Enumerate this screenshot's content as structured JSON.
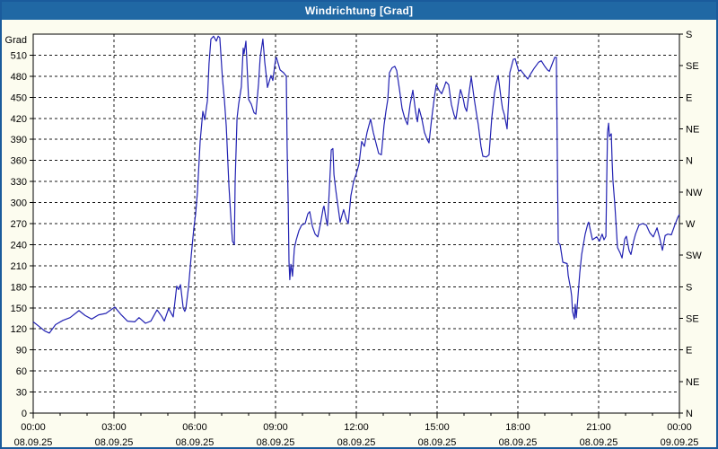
{
  "window": {
    "title": "Windrichtung [Grad]"
  },
  "colors": {
    "frame": "#1a5b9c",
    "titlebar_bg": "#2068a4",
    "titlebar_text": "#ffffff",
    "canvas_bg": "#fcfcef",
    "plot_bg": "#ffffff",
    "gridline": "#1a1a1a",
    "axis": "#000000",
    "line": "#2222b2",
    "label_text": "#000000"
  },
  "chart_data": {
    "type": "line",
    "title": "Windrichtung [Grad]",
    "grid": "dashed",
    "legend": "none",
    "y_axis_left": {
      "unit_label": "Grad",
      "min": 0,
      "max": 540,
      "tick_step": 30,
      "ticks": [
        0,
        30,
        60,
        90,
        120,
        150,
        180,
        210,
        240,
        270,
        300,
        330,
        360,
        390,
        420,
        450,
        480,
        510
      ]
    },
    "y_axis_right": {
      "description": "compass direction every 45 deg",
      "labels": [
        {
          "deg": 540,
          "label": "S"
        },
        {
          "deg": 495,
          "label": "SE"
        },
        {
          "deg": 450,
          "label": "E"
        },
        {
          "deg": 405,
          "label": "NE"
        },
        {
          "deg": 360,
          "label": "N"
        },
        {
          "deg": 315,
          "label": "NW"
        },
        {
          "deg": 270,
          "label": "W"
        },
        {
          "deg": 225,
          "label": "SW"
        },
        {
          "deg": 180,
          "label": "S"
        },
        {
          "deg": 135,
          "label": "SE"
        },
        {
          "deg": 90,
          "label": "E"
        },
        {
          "deg": 45,
          "label": "NE"
        },
        {
          "deg": 0,
          "label": "N"
        }
      ]
    },
    "x_axis": {
      "max_hours": 24,
      "minor_tick_step_hours": 1,
      "gridline_hours": [
        3,
        6,
        9,
        12,
        15,
        18,
        21
      ],
      "major_ticks": [
        {
          "hour": 0,
          "time": "00:00",
          "date": "08.09.25"
        },
        {
          "hour": 3,
          "time": "03:00",
          "date": "08.09.25"
        },
        {
          "hour": 6,
          "time": "06:00",
          "date": "08.09.25"
        },
        {
          "hour": 9,
          "time": "09:00",
          "date": "08.09.25"
        },
        {
          "hour": 12,
          "time": "12:00",
          "date": "08.09.25"
        },
        {
          "hour": 15,
          "time": "15:00",
          "date": "08.09.25"
        },
        {
          "hour": 18,
          "time": "18:00",
          "date": "08.09.25"
        },
        {
          "hour": 21,
          "time": "21:00",
          "date": "08.09.25"
        },
        {
          "hour": 24,
          "time": "00:00",
          "date": "09.09.25"
        }
      ]
    },
    "series": [
      {
        "name": "Windrichtung",
        "color": "#2222b2",
        "points": [
          [
            0,
            130
          ],
          [
            0.27,
            122
          ],
          [
            0.43,
            117
          ],
          [
            0.6,
            114
          ],
          [
            0.83,
            126
          ],
          [
            1.1,
            132
          ],
          [
            1.37,
            136
          ],
          [
            1.7,
            146
          ],
          [
            1.93,
            139
          ],
          [
            2.17,
            134
          ],
          [
            2.43,
            140
          ],
          [
            2.7,
            142
          ],
          [
            3.03,
            151
          ],
          [
            3.27,
            140
          ],
          [
            3.5,
            131
          ],
          [
            3.77,
            130
          ],
          [
            3.93,
            136
          ],
          [
            4.17,
            128
          ],
          [
            4.37,
            131
          ],
          [
            4.6,
            147
          ],
          [
            4.77,
            138
          ],
          [
            4.87,
            131
          ],
          [
            5.03,
            149
          ],
          [
            5.2,
            137
          ],
          [
            5.33,
            181
          ],
          [
            5.4,
            176
          ],
          [
            5.47,
            183
          ],
          [
            5.57,
            150
          ],
          [
            5.63,
            145
          ],
          [
            5.67,
            149
          ],
          [
            5.77,
            180
          ],
          [
            5.87,
            225
          ],
          [
            5.97,
            265
          ],
          [
            6.03,
            283
          ],
          [
            6.1,
            315
          ],
          [
            6.2,
            387
          ],
          [
            6.3,
            430
          ],
          [
            6.37,
            418
          ],
          [
            6.47,
            445
          ],
          [
            6.53,
            498
          ],
          [
            6.6,
            533
          ],
          [
            6.7,
            537
          ],
          [
            6.8,
            530
          ],
          [
            6.87,
            537
          ],
          [
            6.93,
            535
          ],
          [
            7.03,
            476
          ],
          [
            7.1,
            447
          ],
          [
            7.17,
            409
          ],
          [
            7.27,
            323
          ],
          [
            7.33,
            285
          ],
          [
            7.4,
            245
          ],
          [
            7.47,
            240
          ],
          [
            7.5,
            330
          ],
          [
            7.57,
            420
          ],
          [
            7.63,
            440
          ],
          [
            7.73,
            465
          ],
          [
            7.8,
            520
          ],
          [
            7.83,
            512
          ],
          [
            7.9,
            530
          ],
          [
            8,
            447
          ],
          [
            8.1,
            440
          ],
          [
            8.2,
            428
          ],
          [
            8.27,
            426
          ],
          [
            8.37,
            470
          ],
          [
            8.43,
            507
          ],
          [
            8.53,
            533
          ],
          [
            8.6,
            500
          ],
          [
            8.67,
            476
          ],
          [
            8.7,
            464
          ],
          [
            8.83,
            481
          ],
          [
            8.9,
            474
          ],
          [
            9,
            504
          ],
          [
            9.03,
            507
          ],
          [
            9.17,
            489
          ],
          [
            9.3,
            485
          ],
          [
            9.4,
            480
          ],
          [
            9.43,
            380
          ],
          [
            9.47,
            300
          ],
          [
            9.5,
            216
          ],
          [
            9.53,
            190
          ],
          [
            9.57,
            212
          ],
          [
            9.6,
            205
          ],
          [
            9.63,
            195
          ],
          [
            9.7,
            235
          ],
          [
            9.77,
            247
          ],
          [
            9.87,
            260
          ],
          [
            9.97,
            268
          ],
          [
            10.1,
            270
          ],
          [
            10.2,
            284
          ],
          [
            10.27,
            287
          ],
          [
            10.37,
            266
          ],
          [
            10.47,
            255
          ],
          [
            10.57,
            251
          ],
          [
            10.67,
            270
          ],
          [
            10.77,
            292
          ],
          [
            10.8,
            295
          ],
          [
            10.87,
            278
          ],
          [
            10.93,
            267
          ],
          [
            11,
            320
          ],
          [
            11.07,
            375
          ],
          [
            11.13,
            377
          ],
          [
            11.17,
            340
          ],
          [
            11.23,
            320
          ],
          [
            11.3,
            300
          ],
          [
            11.4,
            272
          ],
          [
            11.47,
            282
          ],
          [
            11.53,
            290
          ],
          [
            11.63,
            276
          ],
          [
            11.7,
            270
          ],
          [
            11.8,
            310
          ],
          [
            11.9,
            330
          ],
          [
            12,
            341
          ],
          [
            12.1,
            355
          ],
          [
            12.2,
            387
          ],
          [
            12.3,
            380
          ],
          [
            12.4,
            400
          ],
          [
            12.53,
            419
          ],
          [
            12.63,
            400
          ],
          [
            12.73,
            385
          ],
          [
            12.83,
            370
          ],
          [
            12.93,
            368
          ],
          [
            13.03,
            410
          ],
          [
            13.1,
            430
          ],
          [
            13.17,
            447
          ],
          [
            13.23,
            485
          ],
          [
            13.33,
            492
          ],
          [
            13.43,
            494
          ],
          [
            13.5,
            488
          ],
          [
            13.6,
            462
          ],
          [
            13.7,
            434
          ],
          [
            13.8,
            420
          ],
          [
            13.9,
            411
          ],
          [
            14,
            440
          ],
          [
            14.1,
            460
          ],
          [
            14.2,
            430
          ],
          [
            14.27,
            415
          ],
          [
            14.33,
            434
          ],
          [
            14.43,
            420
          ],
          [
            14.53,
            400
          ],
          [
            14.63,
            390
          ],
          [
            14.7,
            385
          ],
          [
            14.8,
            420
          ],
          [
            14.9,
            450
          ],
          [
            14.97,
            468
          ],
          [
            15.07,
            460
          ],
          [
            15.17,
            455
          ],
          [
            15.27,
            465
          ],
          [
            15.33,
            472
          ],
          [
            15.43,
            468
          ],
          [
            15.53,
            440
          ],
          [
            15.63,
            425
          ],
          [
            15.7,
            419
          ],
          [
            15.8,
            445
          ],
          [
            15.87,
            461
          ],
          [
            15.97,
            448
          ],
          [
            16.03,
            436
          ],
          [
            16.1,
            430
          ],
          [
            16.2,
            460
          ],
          [
            16.27,
            479
          ],
          [
            16.37,
            450
          ],
          [
            16.47,
            425
          ],
          [
            16.53,
            411
          ],
          [
            16.63,
            380
          ],
          [
            16.7,
            366
          ],
          [
            16.83,
            365
          ],
          [
            16.93,
            368
          ],
          [
            17.03,
            420
          ],
          [
            17.13,
            455
          ],
          [
            17.2,
            470
          ],
          [
            17.27,
            481
          ],
          [
            17.37,
            450
          ],
          [
            17.43,
            434
          ],
          [
            17.5,
            425
          ],
          [
            17.6,
            405
          ],
          [
            17.67,
            455
          ],
          [
            17.7,
            485
          ],
          [
            17.77,
            495
          ],
          [
            17.83,
            504
          ],
          [
            17.9,
            505
          ],
          [
            18.03,
            487
          ],
          [
            18.1,
            489
          ],
          [
            18.2,
            484
          ],
          [
            18.33,
            478
          ],
          [
            18.37,
            476
          ],
          [
            18.47,
            483
          ],
          [
            18.6,
            491
          ],
          [
            18.77,
            500
          ],
          [
            18.87,
            502
          ],
          [
            19,
            494
          ],
          [
            19.1,
            489
          ],
          [
            19.17,
            487
          ],
          [
            19.27,
            497
          ],
          [
            19.37,
            507
          ],
          [
            19.43,
            507
          ],
          [
            19.47,
            350
          ],
          [
            19.5,
            243
          ],
          [
            19.57,
            240
          ],
          [
            19.67,
            215
          ],
          [
            19.83,
            213
          ],
          [
            19.87,
            196
          ],
          [
            19.97,
            175
          ],
          [
            20,
            166
          ],
          [
            20.03,
            145
          ],
          [
            20.1,
            134
          ],
          [
            20.13,
            155
          ],
          [
            20.17,
            136
          ],
          [
            20.23,
            165
          ],
          [
            20.3,
            200
          ],
          [
            20.37,
            226
          ],
          [
            20.5,
            255
          ],
          [
            20.6,
            270
          ],
          [
            20.63,
            272
          ],
          [
            20.77,
            247
          ],
          [
            20.93,
            251
          ],
          [
            21.03,
            245
          ],
          [
            21.13,
            255
          ],
          [
            21.2,
            247
          ],
          [
            21.27,
            252
          ],
          [
            21.3,
            330
          ],
          [
            21.33,
            400
          ],
          [
            21.37,
            413
          ],
          [
            21.4,
            394
          ],
          [
            21.47,
            398
          ],
          [
            21.5,
            360
          ],
          [
            21.53,
            332
          ],
          [
            21.6,
            298
          ],
          [
            21.67,
            255
          ],
          [
            21.7,
            236
          ],
          [
            21.8,
            228
          ],
          [
            21.87,
            221
          ],
          [
            21.97,
            248
          ],
          [
            22.03,
            252
          ],
          [
            22.13,
            232
          ],
          [
            22.2,
            226
          ],
          [
            22.3,
            245
          ],
          [
            22.37,
            255
          ],
          [
            22.5,
            268
          ],
          [
            22.63,
            270
          ],
          [
            22.77,
            268
          ],
          [
            22.9,
            257
          ],
          [
            23.03,
            251
          ],
          [
            23.17,
            264
          ],
          [
            23.27,
            249
          ],
          [
            23.37,
            232
          ],
          [
            23.47,
            253
          ],
          [
            23.57,
            255
          ],
          [
            23.7,
            254
          ],
          [
            23.83,
            268
          ],
          [
            23.93,
            278
          ],
          [
            24,
            283
          ]
        ]
      }
    ]
  }
}
